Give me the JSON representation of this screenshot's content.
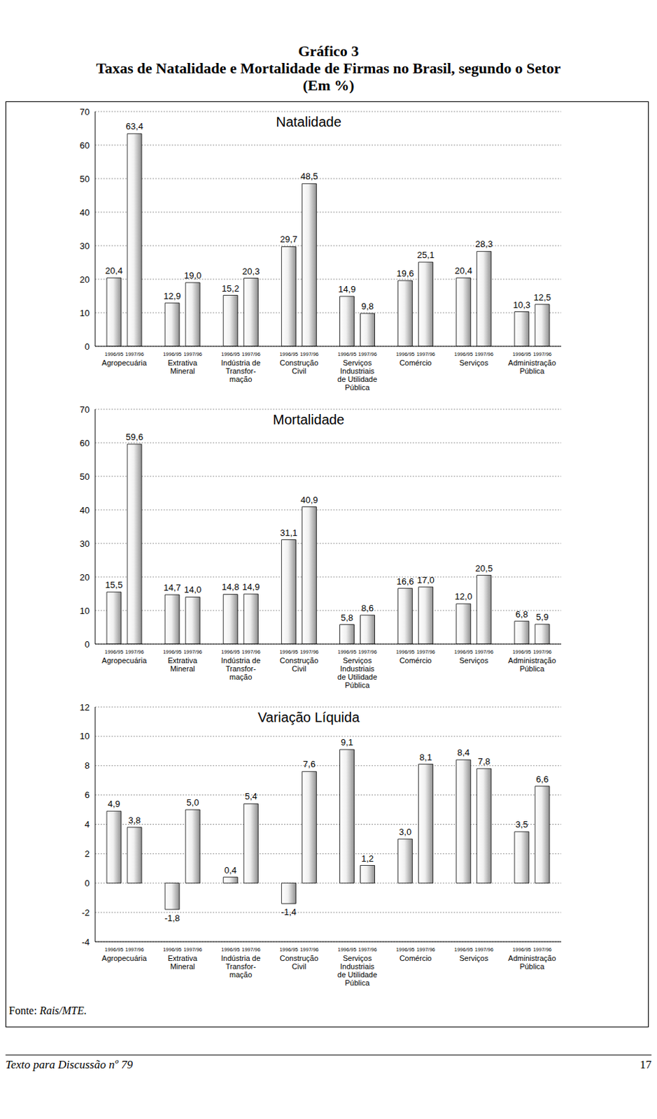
{
  "label": "Gráfico 3",
  "title": "Taxas de Natalidade e Mortalidade de Firmas no Brasil, segundo o Setor",
  "subtitle": "(Em %)",
  "source": "Fonte: Rais/MTE.",
  "footer": "Texto para Discussão nº 79",
  "page": 17,
  "chart_data": [
    {
      "type": "bar",
      "title": "Natalidade",
      "categories": [
        "Agropecuária",
        "Extrativa\nMineral",
        "Indústria de\nTransfor-\nmação",
        "Construção\nCivil",
        "Serviços\nIndustriais\nde Utilidade\nPública",
        "Comércio",
        "Serviços",
        "Administração\nPública"
      ],
      "series": [
        {
          "name": "1996/95",
          "color": "#8f8f8f",
          "values": [
            20.4,
            12.9,
            15.2,
            29.7,
            14.9,
            19.6,
            20.4,
            10.3
          ],
          "value_labels": [
            "20,4",
            "12,9",
            "15,2",
            "29,7",
            "14,9",
            "19,6",
            "20,4",
            "10,3"
          ]
        },
        {
          "name": "1997/96",
          "color": "#8f8f8f",
          "values": [
            63.4,
            19.0,
            20.3,
            48.5,
            9.8,
            25.1,
            28.3,
            12.5
          ],
          "value_labels": [
            "63,4",
            "19,0",
            "20,3",
            "48,5",
            "9,8",
            "25,1",
            "28,3",
            "12,5"
          ]
        }
      ],
      "ylim": [
        0,
        70
      ],
      "yticks": [
        0,
        10,
        20,
        30,
        40,
        50,
        60,
        70
      ],
      "grid": true,
      "data_labels": true
    },
    {
      "type": "bar",
      "title": "Mortalidade",
      "categories": [
        "Agropecuária",
        "Extrativa\nMineral",
        "Indústria de\nTransfor-\nmação",
        "Construção\nCivil",
        "Serviços\nIndustriais\nde Utilidade\nPública",
        "Comércio",
        "Serviços",
        "Administração\nPública"
      ],
      "series": [
        {
          "name": "1996/95",
          "color": "#8f8f8f",
          "values": [
            15.5,
            14.7,
            14.8,
            31.1,
            5.8,
            16.6,
            12.0,
            6.8
          ],
          "value_labels": [
            "15,5",
            "14,7",
            "14,8",
            "31,1",
            "5,8",
            "16,6",
            "12,0",
            "6,8"
          ]
        },
        {
          "name": "1997/96",
          "color": "#8f8f8f",
          "values": [
            59.6,
            14.0,
            14.9,
            40.9,
            8.6,
            17.0,
            20.5,
            5.9
          ],
          "value_labels": [
            "59,6",
            "14,0",
            "14,9",
            "40,9",
            "8,6",
            "17,0",
            "20,5",
            "5,9"
          ]
        }
      ],
      "ylim": [
        0,
        70
      ],
      "yticks": [
        0,
        10,
        20,
        30,
        40,
        50,
        60,
        70
      ],
      "grid": true,
      "data_labels": true
    },
    {
      "type": "bar",
      "title": "Variação Líquida",
      "categories": [
        "Agropecuária",
        "Extrativa\nMineral",
        "Indústria de\nTransfor-\nmação",
        "Construção\nCivil",
        "Serviços\nIndustriais\nde Utilidade\nPública",
        "Comércio",
        "Serviços",
        "Administração\nPública"
      ],
      "series": [
        {
          "name": "1996/95",
          "color": "#8f8f8f",
          "values": [
            4.9,
            -1.8,
            0.4,
            -1.4,
            9.1,
            3.0,
            8.4,
            3.5
          ],
          "value_labels": [
            "4,9",
            "-1,8",
            "0,4",
            "-1,4",
            "9,1",
            "3,0",
            "8,4",
            "3,5"
          ]
        },
        {
          "name": "1997/96",
          "color": "#8f8f8f",
          "values": [
            3.8,
            5.0,
            5.4,
            7.6,
            1.2,
            8.1,
            7.8,
            6.6
          ],
          "value_labels": [
            "3,8",
            "5,0",
            "5,4",
            "7,6",
            "1,2",
            "8,1",
            "7,8",
            "6,6"
          ]
        }
      ],
      "ylim": [
        -4,
        12
      ],
      "yticks": [
        -4,
        -2,
        0,
        2,
        4,
        6,
        8,
        10,
        12
      ],
      "grid": true,
      "data_labels": true
    }
  ]
}
